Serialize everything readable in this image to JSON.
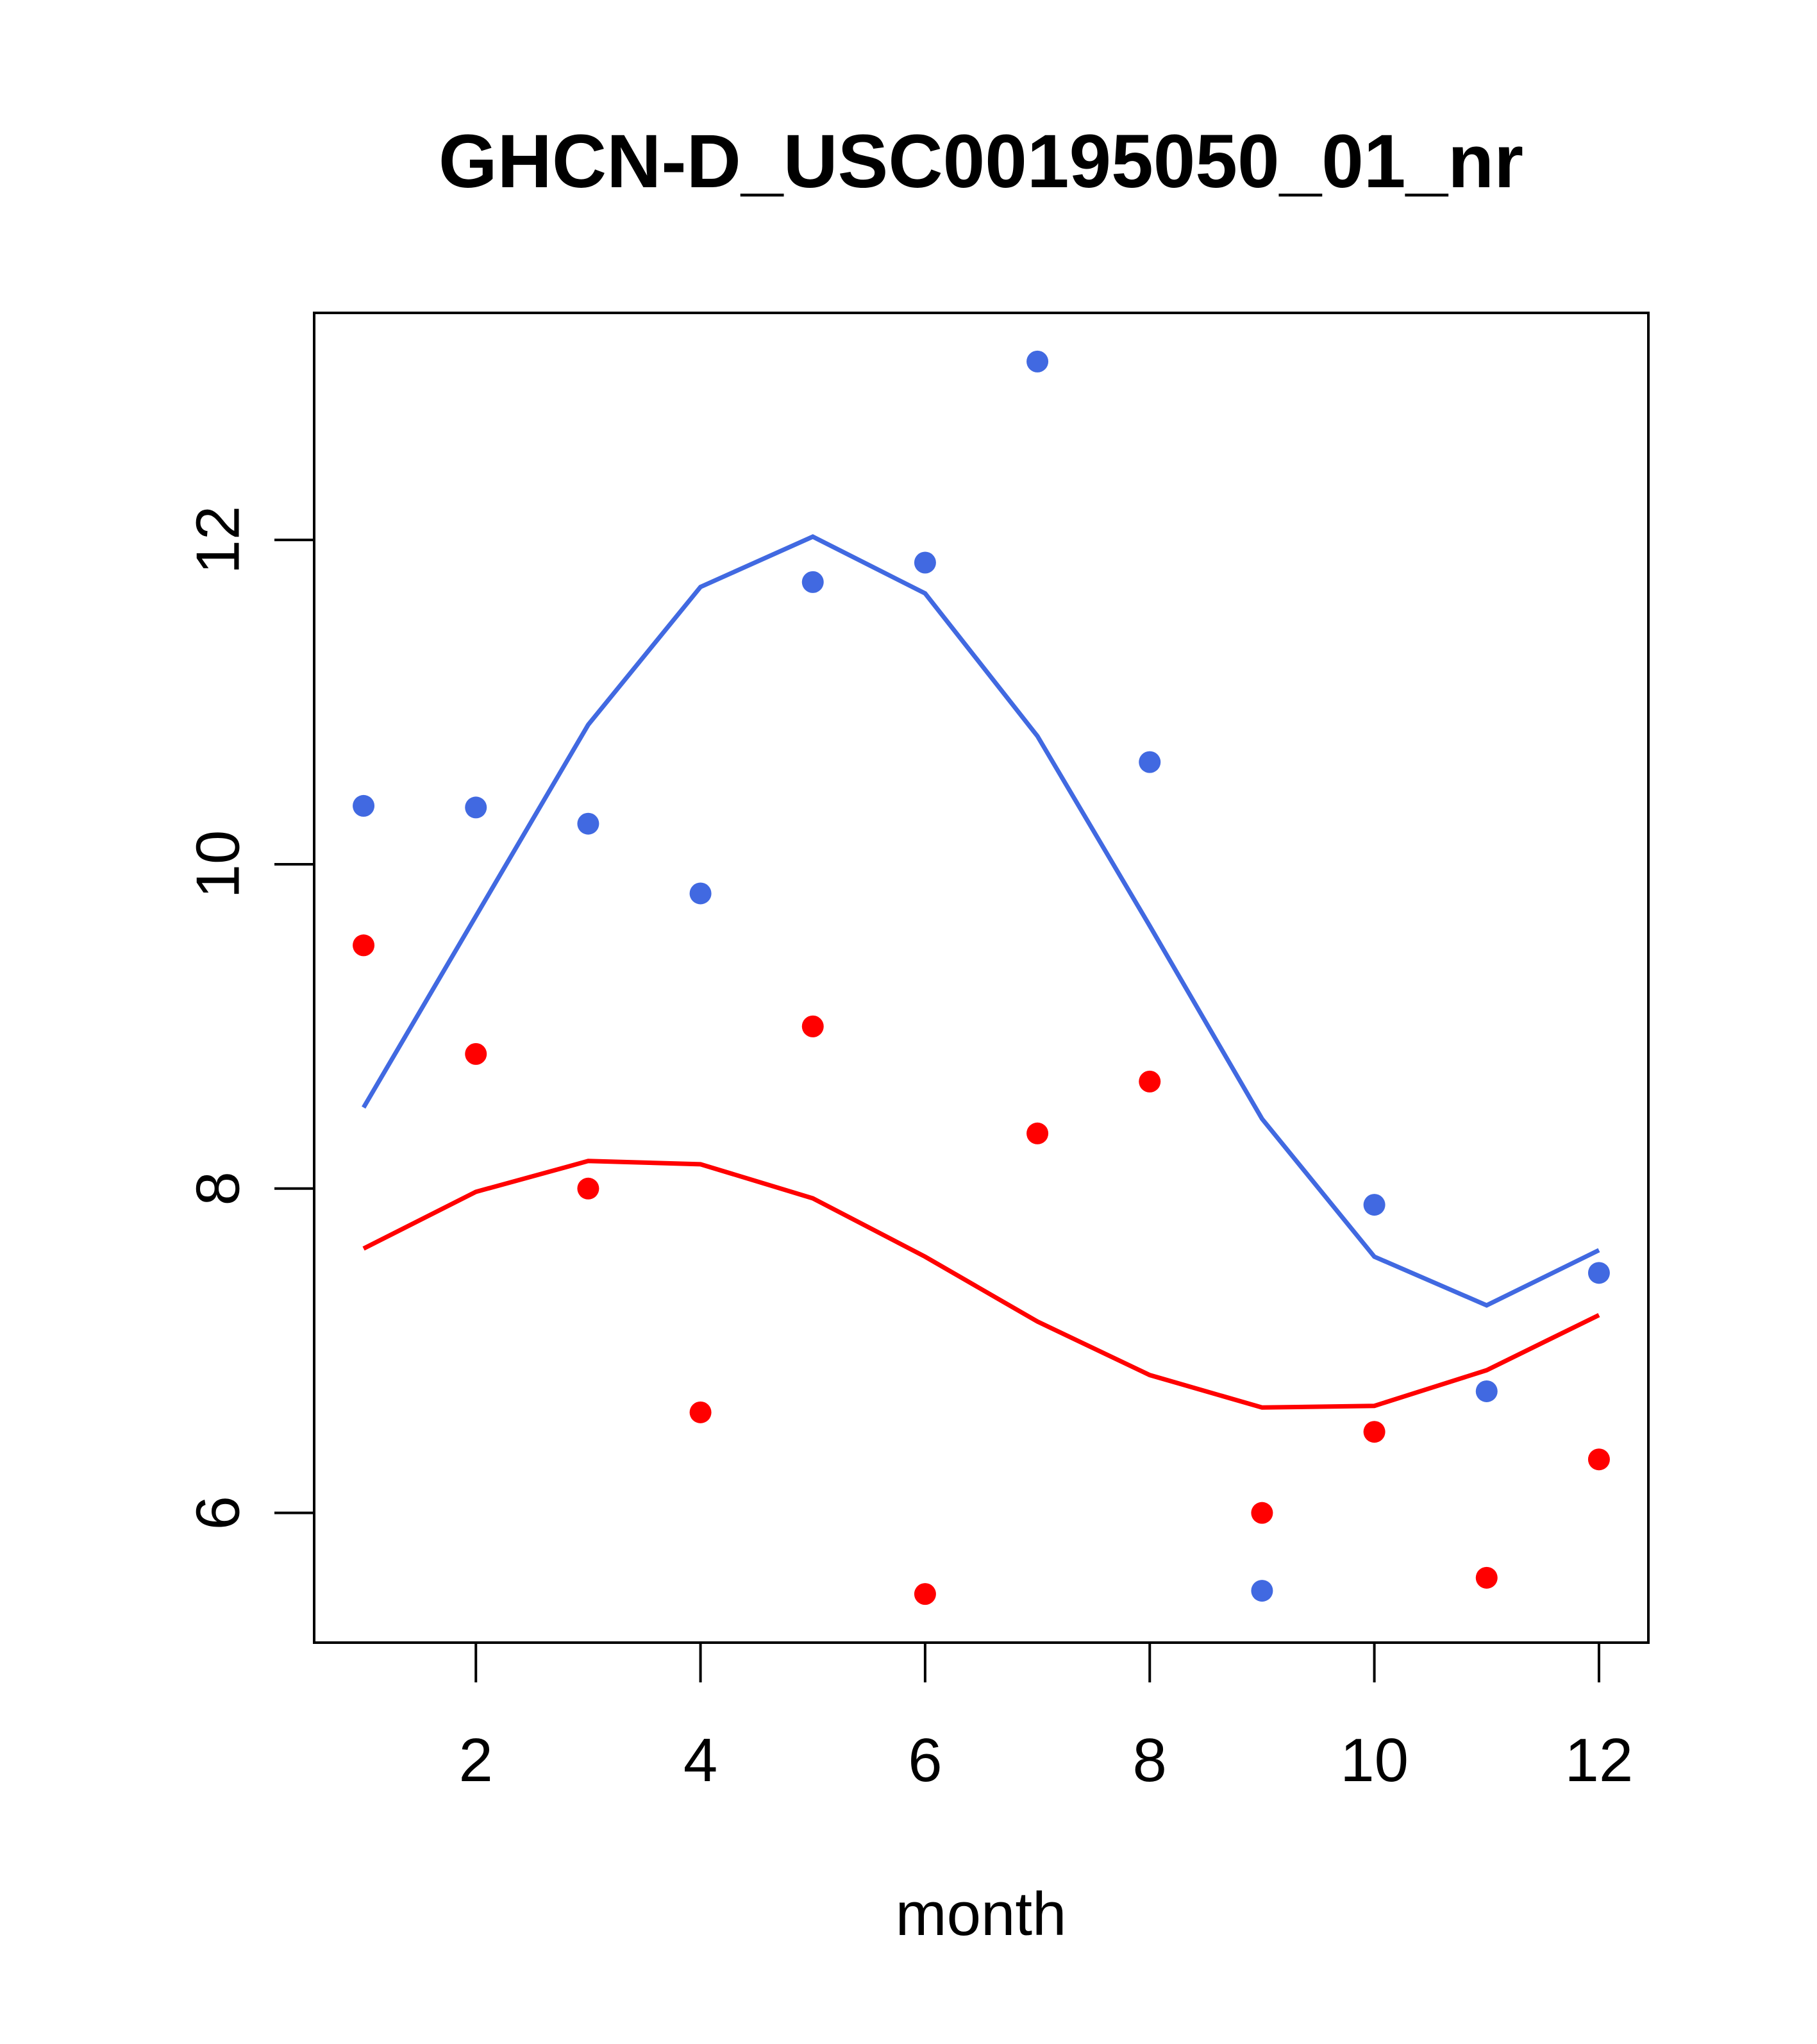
{
  "chart_data": {
    "type": "scatter",
    "title": "GHCN-D_USC00195050_01_nr",
    "xlabel": "month",
    "ylabel": "",
    "xlim": [
      0.56,
      12.44
    ],
    "ylim": [
      5.2,
      13.4
    ],
    "xticks": [
      2,
      4,
      6,
      8,
      10,
      12
    ],
    "yticks": [
      6,
      8,
      10,
      12
    ],
    "x": [
      1,
      2,
      3,
      4,
      5,
      6,
      7,
      8,
      9,
      10,
      11,
      12
    ],
    "series": [
      {
        "name": "blue points",
        "kind": "points",
        "color": "#4169E1",
        "values": [
          10.36,
          10.35,
          10.25,
          9.82,
          11.74,
          11.86,
          13.1,
          10.63,
          5.52,
          7.9,
          6.75,
          7.48
        ]
      },
      {
        "name": "red points",
        "kind": "points",
        "color": "#FF0000",
        "values": [
          9.5,
          8.83,
          8.0,
          6.62,
          9.0,
          5.5,
          8.34,
          8.66,
          6.0,
          6.5,
          5.6,
          6.33
        ]
      },
      {
        "name": "blue fit",
        "kind": "line",
        "color": "#4169E1",
        "values": [
          8.5,
          9.68,
          10.86,
          11.71,
          12.02,
          11.67,
          10.79,
          9.62,
          8.43,
          7.58,
          7.28,
          7.62
        ]
      },
      {
        "name": "red fit",
        "kind": "line",
        "color": "#FF0000",
        "values": [
          7.63,
          7.98,
          8.17,
          8.15,
          7.94,
          7.58,
          7.18,
          6.85,
          6.65,
          6.66,
          6.88,
          7.22
        ]
      }
    ]
  }
}
